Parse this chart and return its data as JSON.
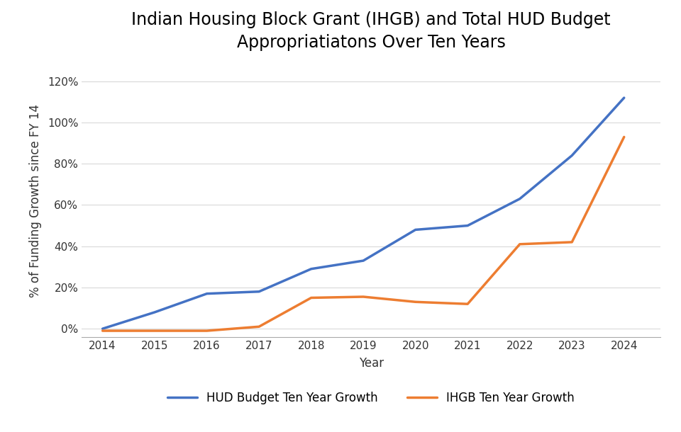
{
  "title_line1": "Indian Housing Block Grant (IHGB) and Total HUD Budget",
  "title_line2": "Appropriatiatons Over Ten Years",
  "xlabel": "Year",
  "ylabel": "% of Funding Growth since FY 14",
  "years": [
    2014,
    2015,
    2016,
    2017,
    2018,
    2019,
    2020,
    2021,
    2022,
    2023,
    2024
  ],
  "hud_values": [
    0.0,
    0.08,
    0.17,
    0.18,
    0.29,
    0.33,
    0.48,
    0.5,
    0.63,
    0.84,
    1.12
  ],
  "ihgb_values": [
    -0.01,
    -0.01,
    -0.01,
    0.01,
    0.15,
    0.155,
    0.13,
    0.12,
    0.41,
    0.42,
    0.93
  ],
  "hud_color": "#4472C4",
  "ihgb_color": "#ED7D31",
  "hud_label": "HUD Budget Ten Year Growth",
  "ihgb_label": "IHGB Ten Year Growth",
  "ylim": [
    -0.04,
    1.28
  ],
  "yticks": [
    0.0,
    0.2,
    0.4,
    0.6,
    0.8,
    1.0,
    1.2
  ],
  "background_color": "#FFFFFF",
  "plot_bg_color": "#FFFFFF",
  "grid_color": "#D9D9D9",
  "line_width": 2.5,
  "title_fontsize": 17,
  "axis_label_fontsize": 12,
  "tick_fontsize": 11,
  "legend_fontsize": 12
}
